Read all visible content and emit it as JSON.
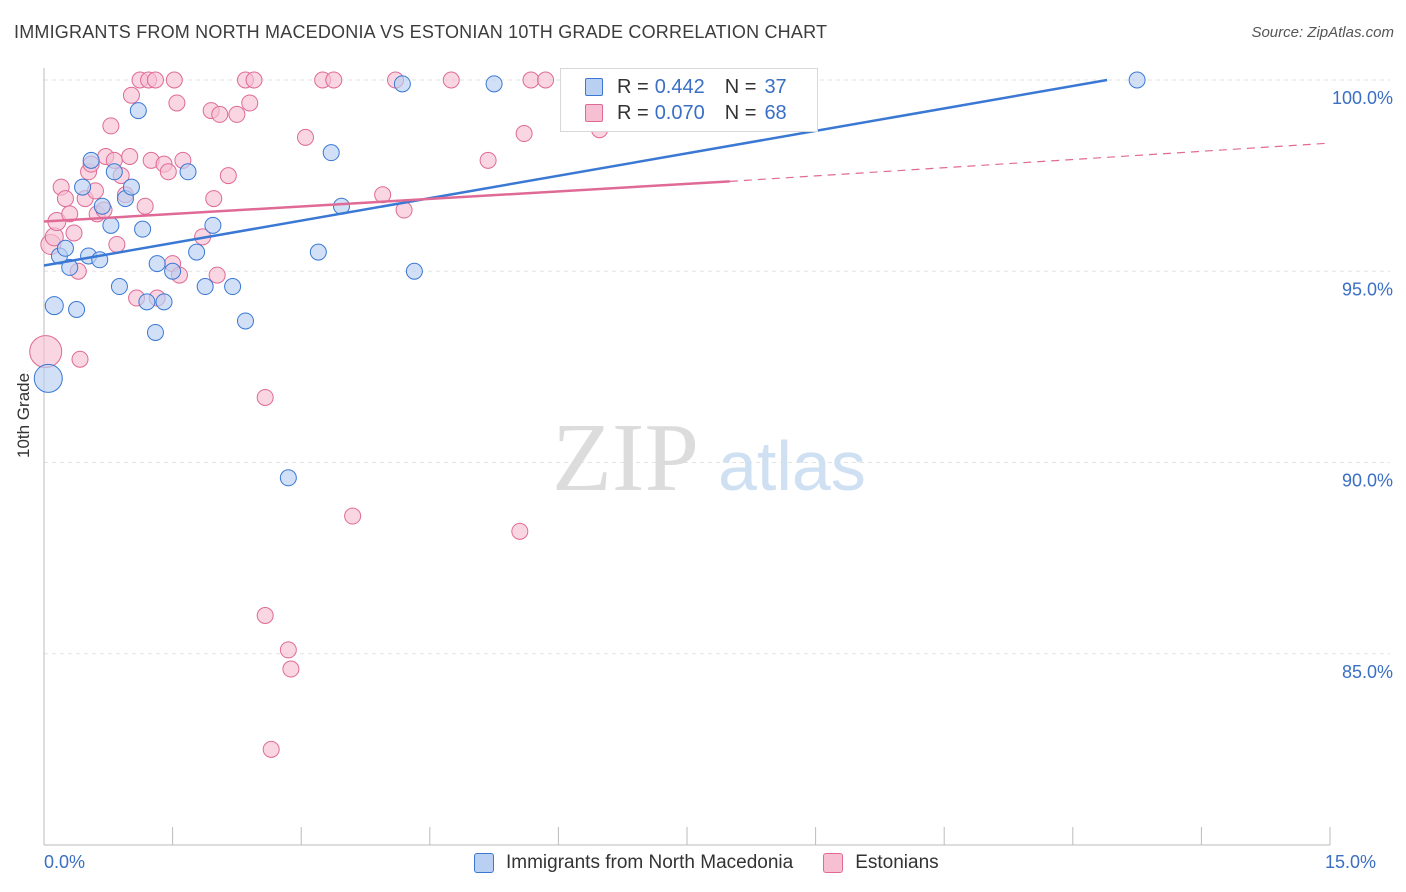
{
  "header": {
    "title": "IMMIGRANTS FROM NORTH MACEDONIA VS ESTONIAN 10TH GRADE CORRELATION CHART",
    "source": "Source: ZipAtlas.com"
  },
  "watermark": {
    "zip": "ZIP",
    "atlas": "atlas"
  },
  "colors": {
    "blue": "#3a78d4",
    "blue_fill": "#b9d0f2",
    "pink": "#e06a96",
    "pink_fill": "#f6c0d2",
    "tick_text": "#3a6fc4",
    "grid": "#e2e2e2"
  },
  "stats_legend": {
    "r_label": "R =",
    "n_label": "N =",
    "series": [
      {
        "name": "Immigrants from North Macedonia",
        "r": "0.442",
        "n": "37"
      },
      {
        "name": "Estonians",
        "r": "0.070",
        "n": "68"
      }
    ]
  },
  "chart_data": {
    "type": "scatter",
    "title": "IMMIGRANTS FROM NORTH MACEDONIA VS ESTONIAN 10TH GRADE CORRELATION CHART",
    "xlabel": "",
    "ylabel": "10th Grade",
    "xlim": [
      0.0,
      15.0
    ],
    "ylim": [
      80.5,
      100.5
    ],
    "x_tick_labels": [
      "0.0%",
      "15.0%"
    ],
    "y_ticks": [
      85,
      90,
      95,
      100
    ],
    "y_tick_labels": [
      "85.0%",
      "90.0%",
      "95.0%",
      "100.0%"
    ],
    "grid": true,
    "legend": "bottom",
    "series": [
      {
        "name": "Immigrants from North Macedonia",
        "color": "#3a78d4",
        "trend": {
          "x": [
            0.0,
            12.4
          ],
          "y": [
            95.15,
            100.0
          ],
          "dashed_to": null
        },
        "points": [
          [
            0.05,
            92.2,
            14
          ],
          [
            0.12,
            94.1,
            9
          ],
          [
            0.18,
            95.4,
            8
          ],
          [
            0.25,
            95.6,
            8
          ],
          [
            0.3,
            95.1,
            8
          ],
          [
            0.38,
            94.0,
            8
          ],
          [
            0.45,
            97.2,
            8
          ],
          [
            0.52,
            95.4,
            8
          ],
          [
            0.55,
            97.9,
            8
          ],
          [
            0.65,
            95.3,
            8
          ],
          [
            0.68,
            96.7,
            8
          ],
          [
            0.78,
            96.2,
            8
          ],
          [
            0.82,
            97.6,
            8
          ],
          [
            0.88,
            94.6,
            8
          ],
          [
            0.95,
            96.9,
            8
          ],
          [
            1.02,
            97.2,
            8
          ],
          [
            1.1,
            99.2,
            8
          ],
          [
            1.15,
            96.1,
            8
          ],
          [
            1.2,
            94.2,
            8
          ],
          [
            1.3,
            93.4,
            8
          ],
          [
            1.32,
            95.2,
            8
          ],
          [
            1.4,
            94.2,
            8
          ],
          [
            1.5,
            95.0,
            8
          ],
          [
            1.68,
            97.6,
            8
          ],
          [
            1.78,
            95.5,
            8
          ],
          [
            1.88,
            94.6,
            8
          ],
          [
            1.97,
            96.2,
            8
          ],
          [
            2.2,
            94.6,
            8
          ],
          [
            2.35,
            93.7,
            8
          ],
          [
            2.85,
            89.6,
            8
          ],
          [
            3.35,
            98.1,
            8
          ],
          [
            3.47,
            96.7,
            8
          ],
          [
            3.2,
            95.5,
            8
          ],
          [
            4.18,
            99.9,
            8
          ],
          [
            4.32,
            95.0,
            8
          ],
          [
            5.25,
            99.9,
            8
          ],
          [
            12.75,
            100.0,
            8
          ]
        ]
      },
      {
        "name": "Estonians",
        "color": "#e06a96",
        "trend": {
          "x": [
            0.0,
            8.0
          ],
          "y": [
            96.3,
            97.35
          ],
          "dashed_to": [
            15.0,
            98.35
          ]
        },
        "points": [
          [
            0.02,
            92.9,
            16
          ],
          [
            0.08,
            95.7,
            10
          ],
          [
            0.12,
            95.9,
            9
          ],
          [
            0.15,
            96.3,
            9
          ],
          [
            0.2,
            97.2,
            8
          ],
          [
            0.25,
            96.9,
            8
          ],
          [
            0.3,
            96.5,
            8
          ],
          [
            0.35,
            96.0,
            8
          ],
          [
            0.4,
            95.0,
            8
          ],
          [
            0.42,
            92.7,
            8
          ],
          [
            0.48,
            96.9,
            8
          ],
          [
            0.52,
            97.6,
            8
          ],
          [
            0.55,
            97.8,
            8
          ],
          [
            0.6,
            97.1,
            8
          ],
          [
            0.62,
            96.5,
            8
          ],
          [
            0.7,
            96.6,
            8
          ],
          [
            0.72,
            98.0,
            8
          ],
          [
            0.78,
            98.8,
            8
          ],
          [
            0.82,
            97.9,
            8
          ],
          [
            0.85,
            95.7,
            8
          ],
          [
            0.9,
            97.5,
            8
          ],
          [
            0.95,
            97.0,
            8
          ],
          [
            1.0,
            98.0,
            8
          ],
          [
            1.02,
            99.6,
            8
          ],
          [
            1.08,
            94.3,
            8
          ],
          [
            1.12,
            100.0,
            8
          ],
          [
            1.18,
            96.7,
            8
          ],
          [
            1.22,
            100.0,
            8
          ],
          [
            1.25,
            97.9,
            8
          ],
          [
            1.3,
            100.0,
            8
          ],
          [
            1.32,
            94.3,
            8
          ],
          [
            1.4,
            97.8,
            8
          ],
          [
            1.45,
            97.6,
            8
          ],
          [
            1.5,
            95.2,
            8
          ],
          [
            1.52,
            100.0,
            8
          ],
          [
            1.55,
            99.4,
            8
          ],
          [
            1.58,
            94.9,
            8
          ],
          [
            1.62,
            97.9,
            8
          ],
          [
            1.85,
            95.9,
            8
          ],
          [
            1.95,
            99.2,
            8
          ],
          [
            1.98,
            96.9,
            8
          ],
          [
            2.02,
            94.9,
            8
          ],
          [
            2.05,
            99.1,
            8
          ],
          [
            2.15,
            97.5,
            8
          ],
          [
            2.25,
            99.1,
            8
          ],
          [
            2.35,
            100.0,
            8
          ],
          [
            2.4,
            99.4,
            8
          ],
          [
            2.45,
            100.0,
            8
          ],
          [
            2.58,
            91.7,
            8
          ],
          [
            2.58,
            86.0,
            8
          ],
          [
            2.85,
            85.1,
            8
          ],
          [
            2.88,
            84.6,
            8
          ],
          [
            2.65,
            82.5,
            8
          ],
          [
            3.05,
            98.5,
            8
          ],
          [
            3.25,
            100.0,
            8
          ],
          [
            3.38,
            100.0,
            8
          ],
          [
            3.6,
            88.6,
            8
          ],
          [
            3.95,
            97.0,
            8
          ],
          [
            4.1,
            100.0,
            8
          ],
          [
            4.2,
            96.6,
            8
          ],
          [
            4.75,
            100.0,
            8
          ],
          [
            5.18,
            97.9,
            8
          ],
          [
            5.6,
            98.6,
            8
          ],
          [
            5.68,
            100.0,
            8
          ],
          [
            5.85,
            100.0,
            8
          ],
          [
            5.55,
            88.2,
            8
          ],
          [
            6.48,
            98.7,
            8
          ],
          [
            7.98,
            100.0,
            8
          ]
        ]
      }
    ]
  }
}
